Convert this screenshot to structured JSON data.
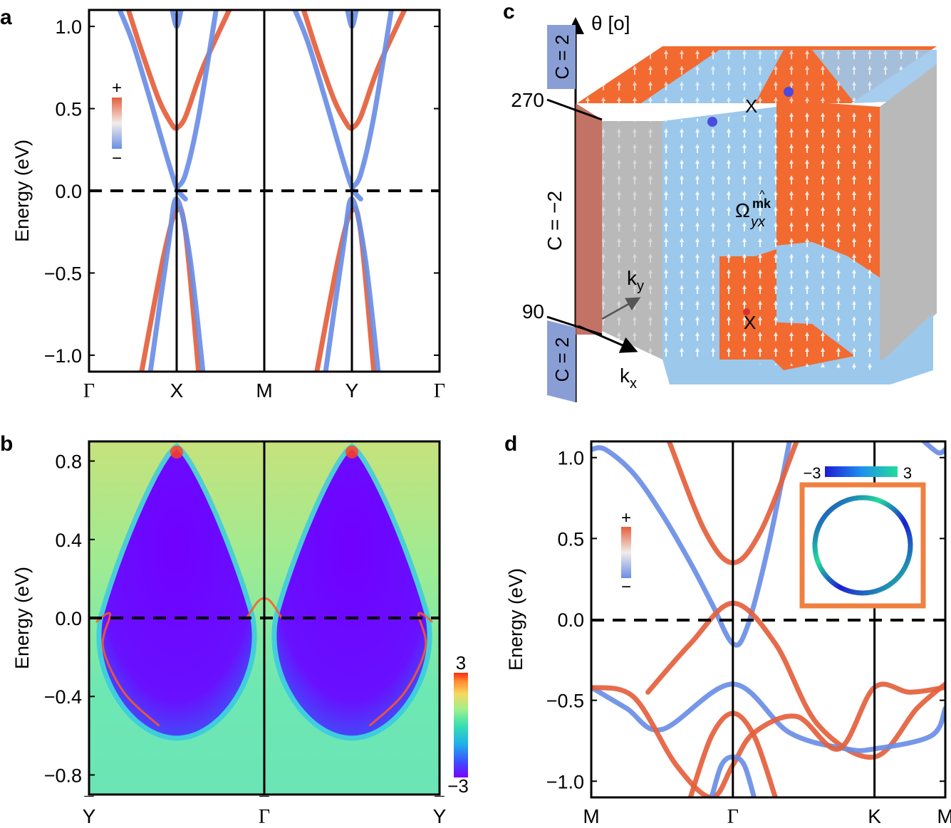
{
  "colors": {
    "pos": "#e45f3c",
    "neg": "#6a8ee6",
    "cmap": [
      "#7a00ff",
      "#4a3bff",
      "#2f7df5",
      "#22c4e0",
      "#39e0b0",
      "#8ef08a",
      "#d8e070",
      "#ffb040",
      "#ff4020"
    ],
    "circle_cmap": [
      "#1c1cd6",
      "#1e90ee",
      "#22dc9a"
    ],
    "orange_panel": "#f26a30",
    "blue_panel": "#9cc8ec",
    "grey_panel": "#b9b9b9"
  },
  "chart_data": [
    {
      "panel": "a",
      "type": "line",
      "panel_label": "a",
      "ylabel": "Energy (eV)",
      "ylim": [
        -1.1,
        1.1
      ],
      "yticks": [
        1.0,
        0.5,
        0.0,
        -0.5,
        -1.0
      ],
      "ytick_labels": [
        "1.0",
        "0.5",
        "0.0",
        "−0.5",
        "−1.0"
      ],
      "kpoints": [
        0,
        1,
        2,
        3,
        4
      ],
      "kpoint_labels": [
        "Γ",
        "X",
        "M",
        "Y",
        "Γ"
      ],
      "fermi_level": 0.0,
      "colorbar": {
        "plus": "+",
        "minus": "−"
      },
      "series": [
        {
          "name": "band1",
          "color": "pos",
          "x": [
            0.45,
            0.6,
            0.8,
            0.95,
            1.0
          ],
          "y": [
            1.1,
            0.85,
            0.55,
            0.4,
            0.38
          ]
        },
        {
          "name": "band2",
          "color": "neg",
          "x": [
            0.35,
            0.5,
            0.7,
            0.88,
            1.0,
            1.1
          ],
          "y": [
            1.1,
            0.9,
            0.55,
            0.22,
            0.02,
            -0.05
          ]
        },
        {
          "name": "band3",
          "color": "pos",
          "x": [
            1.0,
            1.1,
            1.3,
            1.6
          ],
          "y": [
            0.38,
            0.45,
            0.75,
            1.1
          ]
        },
        {
          "name": "band4",
          "color": "neg",
          "x": [
            1.0,
            1.1,
            1.25,
            1.45
          ],
          "y": [
            0.02,
            0.1,
            0.45,
            1.1
          ]
        },
        {
          "name": "band5",
          "color": "pos",
          "x": [
            0.6,
            0.85,
            1.0,
            1.1,
            1.25
          ],
          "y": [
            -1.1,
            -0.4,
            -0.12,
            -0.25,
            -1.1
          ]
        },
        {
          "name": "band6",
          "color": "neg",
          "x": [
            0.7,
            0.9,
            1.0,
            1.15,
            1.3
          ],
          "y": [
            -1.1,
            -0.35,
            -0.05,
            -0.4,
            -1.1
          ]
        },
        {
          "name": "band7",
          "color": "neg",
          "x": [
            0.95,
            1.0,
            1.05
          ],
          "y": [
            1.1,
            1.0,
            1.1
          ]
        },
        {
          "name": "band8",
          "color": "pos",
          "x": [
            2.45,
            2.6,
            2.8,
            2.95,
            3.0
          ],
          "y": [
            1.1,
            0.85,
            0.55,
            0.4,
            0.38
          ]
        },
        {
          "name": "band9",
          "color": "neg",
          "x": [
            2.35,
            2.5,
            2.7,
            2.88,
            3.0,
            3.1
          ],
          "y": [
            1.1,
            0.9,
            0.55,
            0.22,
            0.02,
            -0.05
          ]
        },
        {
          "name": "band10",
          "color": "pos",
          "x": [
            3.0,
            3.1,
            3.3,
            3.6
          ],
          "y": [
            0.38,
            0.45,
            0.75,
            1.1
          ]
        },
        {
          "name": "band11",
          "color": "neg",
          "x": [
            3.0,
            3.1,
            3.25,
            3.45
          ],
          "y": [
            0.02,
            0.1,
            0.45,
            1.1
          ]
        },
        {
          "name": "band12",
          "color": "pos",
          "x": [
            2.6,
            2.85,
            3.0,
            3.1,
            3.25
          ],
          "y": [
            -1.1,
            -0.4,
            -0.12,
            -0.25,
            -1.1
          ]
        },
        {
          "name": "band13",
          "color": "neg",
          "x": [
            2.7,
            2.9,
            3.0,
            3.15,
            3.3
          ],
          "y": [
            -1.1,
            -0.35,
            -0.05,
            -0.4,
            -1.1
          ]
        },
        {
          "name": "band14",
          "color": "neg",
          "x": [
            2.95,
            3.0,
            3.05
          ],
          "y": [
            1.1,
            1.0,
            1.1
          ]
        }
      ]
    },
    {
      "panel": "b",
      "type": "heatmap",
      "panel_label": "b",
      "ylabel": "Energy (eV)",
      "ylim": [
        -0.9,
        0.9
      ],
      "yticks": [
        0.8,
        0.4,
        0.0,
        -0.4,
        -0.8
      ],
      "ytick_labels": [
        "0.8",
        "0.4",
        "0.0",
        "−0.4",
        "−0.8"
      ],
      "kpoint_labels": [
        "Y",
        "Γ",
        "Y"
      ],
      "kpoint_bar": "¯",
      "fermi_level": 0.0,
      "colorbar": {
        "max": "3",
        "min": "−3",
        "range": [
          -3,
          3
        ]
      },
      "gap_regions": [
        {
          "center_k": 0.25,
          "top_e": 0.86,
          "bottom_e": -0.6,
          "half_width_k": 0.2
        },
        {
          "center_k": 0.75,
          "top_e": 0.86,
          "bottom_e": -0.6,
          "half_width_k": 0.2
        }
      ]
    },
    {
      "panel": "c",
      "type": "3d-berry-curvature",
      "panel_label": "c",
      "axis_label": "θ [o]",
      "theta_ticks": [
        "270",
        "90"
      ],
      "chern_labels": [
        "C = 2",
        "C = −2",
        "C = 2"
      ],
      "k_labels": {
        "ky": "k",
        "ky_sub": "y",
        "kx": "k",
        "kx_sub": "x"
      },
      "point_labels": [
        "X",
        "X"
      ],
      "omega_label": "Ω",
      "omega_sub": "yx",
      "omega_sup": "mk",
      "omega_hat": "^"
    },
    {
      "panel": "d",
      "type": "line",
      "panel_label": "d",
      "ylabel": "Energy (eV)",
      "ylim": [
        -1.1,
        1.1
      ],
      "yticks": [
        1.0,
        0.5,
        0.0,
        -0.5,
        -1.0
      ],
      "ytick_labels": [
        "1.0",
        "0.5",
        "0.0",
        "−0.5",
        "−1.0"
      ],
      "kpoints": [
        0,
        1,
        2,
        2.5
      ],
      "kpoint_labels": [
        "M",
        "Γ",
        "K",
        "M"
      ],
      "fermi_level": 0.0,
      "colorbar": {
        "plus": "+",
        "minus": "−"
      },
      "inset_colorbar": {
        "min": "−3",
        "max": "3"
      },
      "series": [
        {
          "name": "c1",
          "color": "neg",
          "x": [
            0.0,
            0.1,
            0.3,
            0.5,
            0.7,
            0.85,
            1.0,
            1.1,
            1.25,
            1.4
          ],
          "y": [
            1.05,
            1.05,
            0.9,
            0.65,
            0.35,
            0.1,
            -0.15,
            -0.05,
            0.45,
            1.1
          ]
        },
        {
          "name": "c2",
          "color": "pos",
          "x": [
            0.55,
            0.8,
            1.0,
            1.2,
            1.45
          ],
          "y": [
            1.1,
            0.55,
            0.35,
            0.55,
            1.1
          ]
        },
        {
          "name": "c3",
          "color": "pos",
          "x": [
            0.4,
            0.7,
            1.0,
            1.3,
            1.6,
            2.0,
            2.3,
            2.5
          ],
          "y": [
            -0.45,
            -0.15,
            0.1,
            -0.15,
            -0.65,
            -0.85,
            -0.55,
            -0.4
          ]
        },
        {
          "name": "c4",
          "color": "neg",
          "x": [
            0.0,
            0.25,
            0.5,
            1.0,
            1.4,
            1.8,
            2.0,
            2.4,
            2.5
          ],
          "y": [
            -0.42,
            -0.55,
            -0.68,
            -0.4,
            -0.7,
            -0.8,
            -0.8,
            -0.72,
            -0.55
          ]
        },
        {
          "name": "c5",
          "color": "pos",
          "x": [
            0.0,
            0.3,
            0.6,
            0.85,
            1.0,
            1.15,
            1.45,
            1.75,
            2.0,
            2.25,
            2.5
          ],
          "y": [
            -0.42,
            -0.48,
            -0.9,
            -1.1,
            -0.9,
            -0.7,
            -0.6,
            -0.8,
            -0.42,
            -0.45,
            -0.42
          ]
        },
        {
          "name": "c6",
          "color": "pos",
          "x": [
            0.7,
            0.85,
            1.0,
            1.15,
            1.3
          ],
          "y": [
            -1.1,
            -0.72,
            -0.58,
            -0.72,
            -1.1
          ]
        },
        {
          "name": "c7",
          "color": "neg",
          "x": [
            0.85,
            0.92,
            1.0,
            1.08,
            1.15
          ],
          "y": [
            -1.1,
            -0.9,
            -0.85,
            -0.9,
            -1.1
          ]
        },
        {
          "name": "c8",
          "color": "neg",
          "x": [
            2.35,
            2.45,
            2.5
          ],
          "y": [
            1.1,
            1.03,
            1.05
          ]
        }
      ]
    }
  ]
}
